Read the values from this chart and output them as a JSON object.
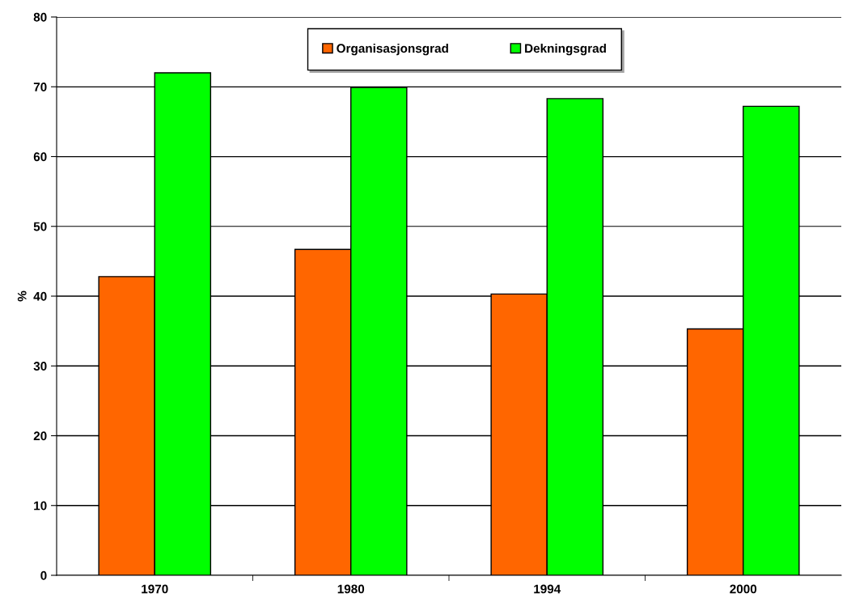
{
  "chart_data": {
    "type": "bar",
    "ylabel": "%",
    "categories": [
      "1970",
      "1980",
      "1994",
      "2000"
    ],
    "series": [
      {
        "name": "Organisasjonsgrad",
        "color": "#ff6600",
        "values": [
          42.8,
          46.7,
          40.3,
          35.3
        ]
      },
      {
        "name": "Dekningsgrad",
        "color": "#00ff00",
        "values": [
          72.0,
          69.9,
          68.3,
          67.2
        ]
      }
    ],
    "ylim": [
      0,
      80
    ],
    "yticks": [
      0,
      10,
      20,
      30,
      40,
      50,
      60,
      70,
      80
    ],
    "grid": "y",
    "legend": "top"
  }
}
